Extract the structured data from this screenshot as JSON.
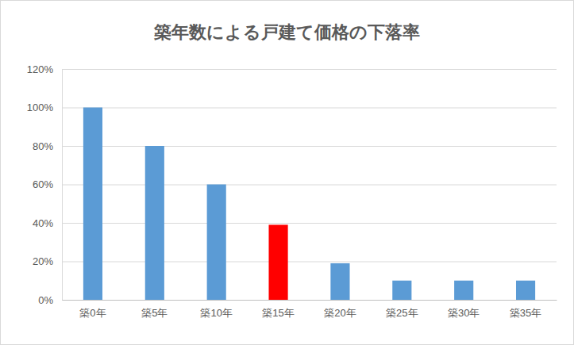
{
  "chart_data": {
    "type": "bar",
    "title": "築年数による戸建て価格の下落率",
    "categories": [
      "築0年",
      "築5年",
      "築10年",
      "築15年",
      "築20年",
      "築25年",
      "築30年",
      "築35年"
    ],
    "values": [
      100,
      80,
      60,
      39,
      19,
      10,
      10,
      10
    ],
    "colors": [
      "#5b9bd5",
      "#5b9bd5",
      "#5b9bd5",
      "#ff0000",
      "#5b9bd5",
      "#5b9bd5",
      "#5b9bd5",
      "#5b9bd5"
    ],
    "ylim": [
      0,
      120
    ],
    "yticks": [
      {
        "value": 0,
        "label": "0%"
      },
      {
        "value": 20,
        "label": "20%"
      },
      {
        "value": 40,
        "label": "40%"
      },
      {
        "value": 60,
        "label": "60%"
      },
      {
        "value": 80,
        "label": "80%"
      },
      {
        "value": 100,
        "label": "100%"
      },
      {
        "value": 120,
        "label": "120%"
      }
    ],
    "grid": true
  }
}
